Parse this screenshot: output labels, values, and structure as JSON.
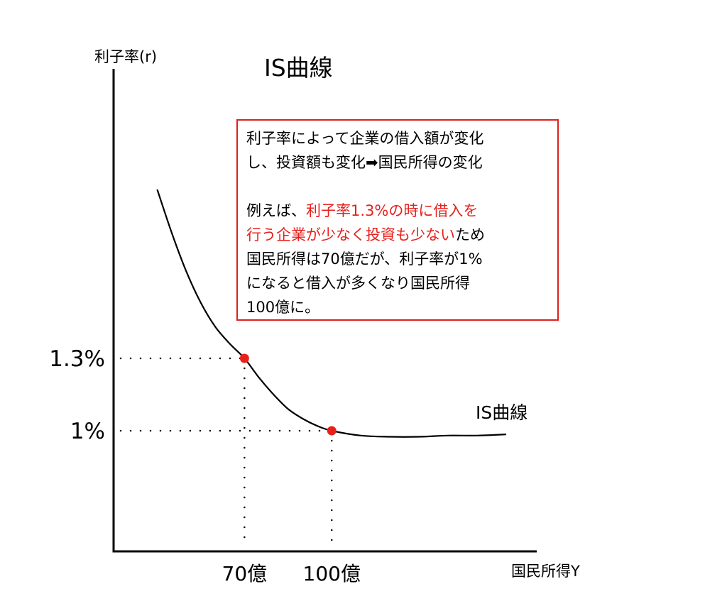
{
  "chart_data": {
    "type": "line",
    "title": "IS曲線",
    "xlabel": "国民所得Y",
    "ylabel": "利子率(r)",
    "x_tick_labels": [
      "70億",
      "100億"
    ],
    "y_tick_labels": [
      "1.3%",
      "1%"
    ],
    "series": [
      {
        "name": "IS曲線",
        "x": [
          40,
          45,
          50,
          55,
          60,
          65,
          70,
          75,
          80,
          85,
          90,
          95,
          100,
          110,
          120,
          130,
          140,
          150,
          160
        ],
        "y": [
          2.0,
          1.82,
          1.66,
          1.53,
          1.43,
          1.36,
          1.3,
          1.22,
          1.15,
          1.09,
          1.05,
          1.02,
          1.0,
          0.98,
          0.975,
          0.975,
          0.98,
          0.98,
          0.985
        ]
      }
    ],
    "highlight_points": [
      {
        "x": 70,
        "y": 1.3
      },
      {
        "x": 100,
        "y": 1.0
      }
    ],
    "xlim": [
      25,
      170
    ],
    "ylim": [
      0.5,
      2.5
    ],
    "grid": false,
    "colors": {
      "curve": "#000000",
      "points": "#e8201c",
      "box_border": "#e0201a",
      "highlight_text": "#e8201c"
    }
  },
  "annotation": {
    "lines": [
      [
        {
          "text": "利子率によって企業の借入額が変化",
          "red": false
        }
      ],
      [
        {
          "text": "し、投資額も変化➡国民所得の変化",
          "red": false
        }
      ],
      [],
      [
        {
          "text": "例えば、",
          "red": false
        },
        {
          "text": "利子率1.3%の時に借入を",
          "red": true
        }
      ],
      [
        {
          "text": "行う企業が少なく投資も少ない",
          "red": true
        },
        {
          "text": "ため",
          "red": false
        }
      ],
      [
        {
          "text": "国民所得は70億だが、利子率が1%",
          "red": false
        }
      ],
      [
        {
          "text": "になると借入が多くなり国民所得",
          "red": false
        }
      ],
      [
        {
          "text": "100億に。",
          "red": false
        }
      ]
    ]
  }
}
